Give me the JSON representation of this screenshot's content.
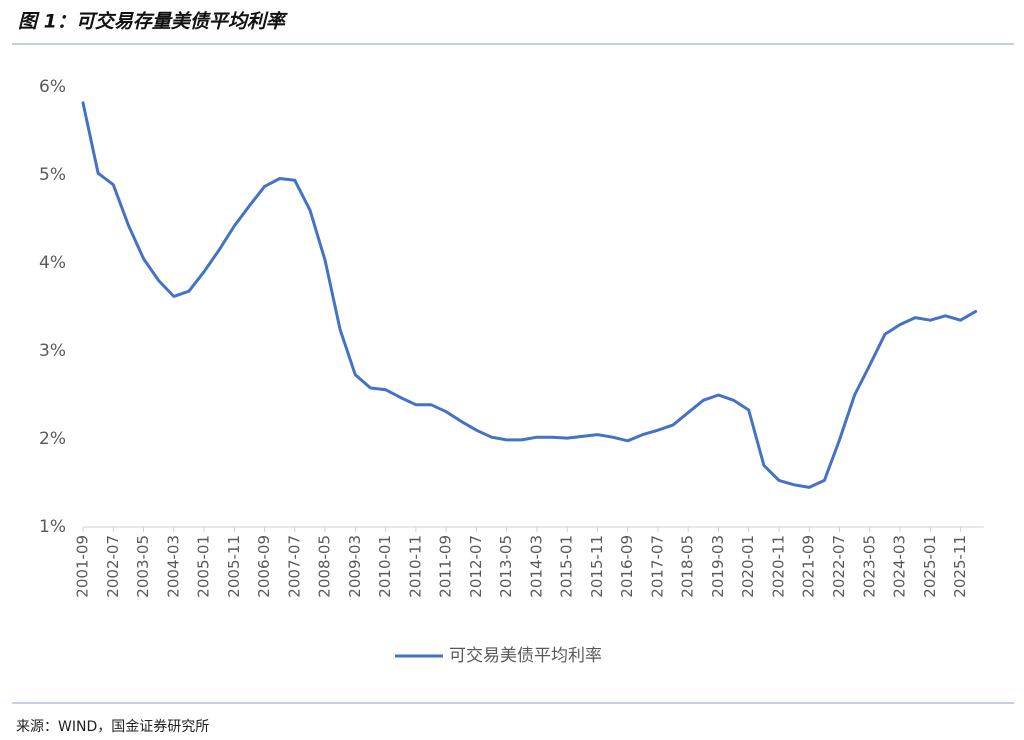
{
  "chart_data": {
    "type": "line",
    "title": "图 1：可交易存量美债平均利率",
    "source": "来源：WIND，国金证券研究所",
    "categories": [
      "2001-09",
      null,
      "2002-07",
      null,
      "2003-05",
      null,
      "2004-03",
      null,
      "2005-01",
      null,
      "2005-11",
      null,
      "2006-09",
      null,
      "2007-07",
      null,
      "2008-05",
      null,
      "2009-03",
      null,
      "2010-01",
      null,
      "2010-11",
      null,
      "2011-09",
      null,
      "2012-07",
      null,
      "2013-05",
      null,
      "2014-03",
      null,
      "2015-01",
      null,
      "2015-11",
      null,
      "2016-09",
      null,
      "2017-07",
      null,
      "2018-05",
      null,
      "2019-03",
      null,
      "2020-01",
      null,
      "2020-11",
      null,
      "2021-09",
      null,
      "2022-07",
      null,
      "2023-05",
      null,
      "2024-03",
      null,
      "2025-01",
      null,
      "2025-11",
      null
    ],
    "series": [
      {
        "name": "可交易美债平均利率",
        "color": "#4472c4",
        "values": [
          5.82,
          5.02,
          4.89,
          4.43,
          4.05,
          3.8,
          3.62,
          3.68,
          3.9,
          4.15,
          4.42,
          4.65,
          4.87,
          4.96,
          4.94,
          4.6,
          4.03,
          3.24,
          2.73,
          2.58,
          2.56,
          2.47,
          2.39,
          2.39,
          2.31,
          2.2,
          2.1,
          2.02,
          1.99,
          1.99,
          2.02,
          2.02,
          2.01,
          2.03,
          2.05,
          2.02,
          1.98,
          2.05,
          2.1,
          2.16,
          2.3,
          2.44,
          2.5,
          2.44,
          2.33,
          1.7,
          1.53,
          1.48,
          1.45,
          1.53,
          1.99,
          2.5,
          2.84,
          3.19,
          3.3,
          3.38,
          3.35,
          3.4,
          3.35,
          3.45
        ]
      }
    ],
    "ylim": [
      1,
      6
    ],
    "yticks": [
      {
        "value": 1,
        "label": "1%"
      },
      {
        "value": 2,
        "label": "2%"
      },
      {
        "value": 3,
        "label": "3%"
      },
      {
        "value": 4,
        "label": "4%"
      },
      {
        "value": 5,
        "label": "5%"
      },
      {
        "value": 6,
        "label": "6%"
      }
    ],
    "legend": "bottom"
  }
}
